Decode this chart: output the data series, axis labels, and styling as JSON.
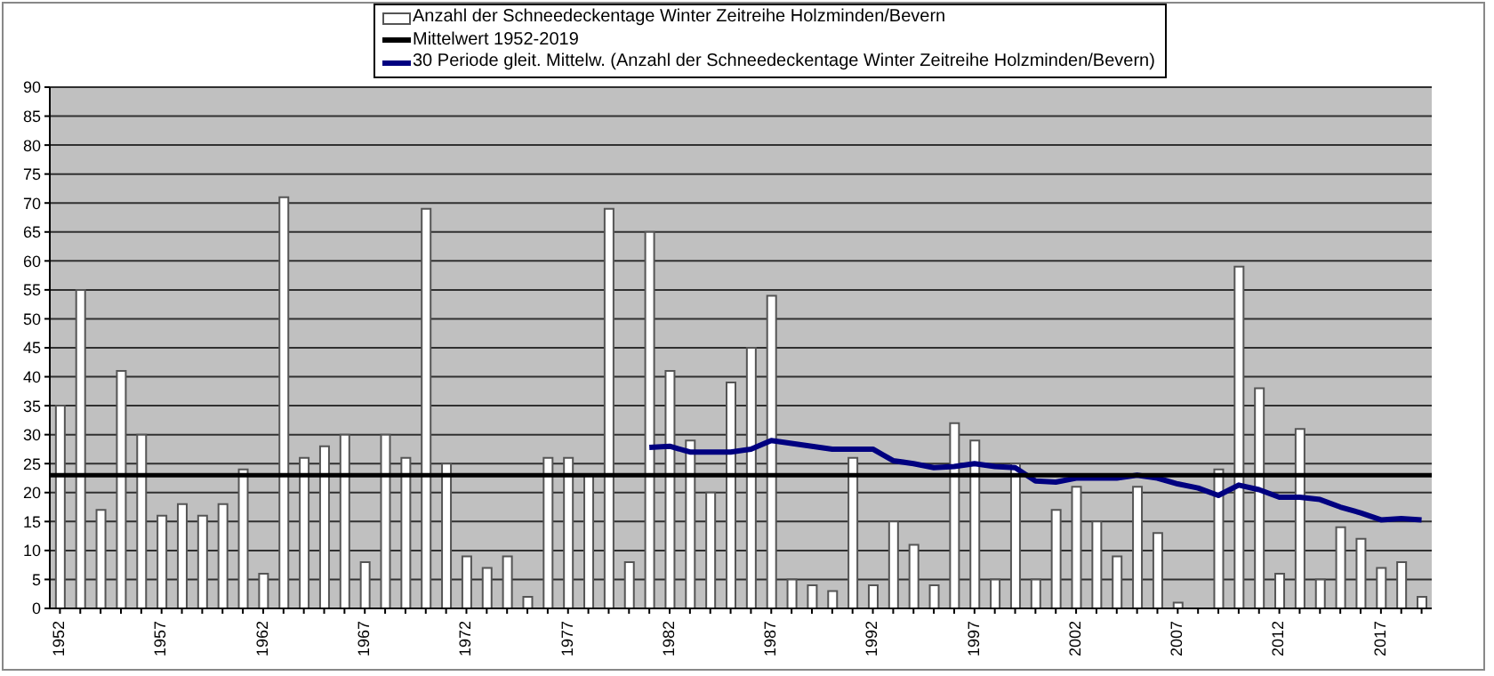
{
  "chart_data": {
    "type": "bar",
    "categories": [
      "1952",
      null,
      null,
      null,
      null,
      "1957",
      null,
      null,
      null,
      null,
      "1962",
      null,
      null,
      null,
      null,
      "1967",
      null,
      null,
      null,
      null,
      "1972",
      null,
      null,
      null,
      null,
      "1977",
      null,
      null,
      null,
      null,
      "1982",
      null,
      null,
      null,
      null,
      "1987",
      null,
      null,
      null,
      null,
      "1992",
      null,
      null,
      null,
      null,
      "1997",
      null,
      null,
      null,
      null,
      "2002",
      null,
      null,
      null,
      null,
      "2007",
      null,
      null,
      null,
      null,
      "2012",
      null,
      null,
      null,
      null,
      "2017",
      null,
      null
    ],
    "series": [
      {
        "name": "Anzahl der Schneedeckentage Winter Zeitreihe Holzminden/Bevern",
        "color": "#ffffff",
        "values": [
          35,
          55,
          17,
          41,
          30,
          16,
          18,
          16,
          18,
          24,
          6,
          71,
          26,
          28,
          30,
          8,
          30,
          26,
          69,
          25,
          9,
          7,
          9,
          2,
          26,
          26,
          23,
          69,
          8,
          65,
          41,
          29,
          20,
          39,
          45,
          54,
          5,
          4,
          3,
          26,
          4,
          15,
          11,
          4,
          32,
          29,
          5,
          25,
          5,
          17,
          21,
          15,
          9,
          21,
          13,
          1,
          0,
          24,
          59,
          38,
          6,
          31,
          5,
          14,
          12,
          7,
          8,
          2
        ]
      },
      {
        "name": "30 Periode gleit. Mittelw. (Anzahl der Schneedeckentage Winter Zeitreihe Holzminden/Bevern)",
        "type": "line",
        "color": "#000080",
        "values": [
          null,
          null,
          null,
          null,
          null,
          null,
          null,
          null,
          null,
          null,
          null,
          null,
          null,
          null,
          null,
          null,
          null,
          null,
          null,
          null,
          null,
          null,
          null,
          null,
          null,
          null,
          null,
          null,
          null,
          27.8,
          28,
          27,
          27,
          27,
          27.5,
          29,
          28.5,
          28,
          27.5,
          27.5,
          27.5,
          25.5,
          25,
          24.3,
          24.5,
          25,
          24.5,
          24.3,
          22,
          21.8,
          22.5,
          22.5,
          22.5,
          23,
          22.5,
          21.5,
          20.8,
          19.5,
          21.3,
          20.5,
          19.2,
          19.2,
          18.8,
          17.5,
          16.5,
          15.3,
          15.5,
          15.3
        ]
      }
    ],
    "ref_lines": [
      {
        "axis": "y",
        "value": 23,
        "label": "Mittelwert 1952-2019",
        "color": "#000000"
      }
    ],
    "ylim": [
      0,
      90
    ],
    "yticks": [
      0,
      5,
      10,
      15,
      20,
      25,
      30,
      35,
      40,
      45,
      50,
      55,
      60,
      65,
      70,
      75,
      80,
      85,
      90
    ],
    "grid": "y",
    "legend": "top",
    "marker": "none"
  }
}
